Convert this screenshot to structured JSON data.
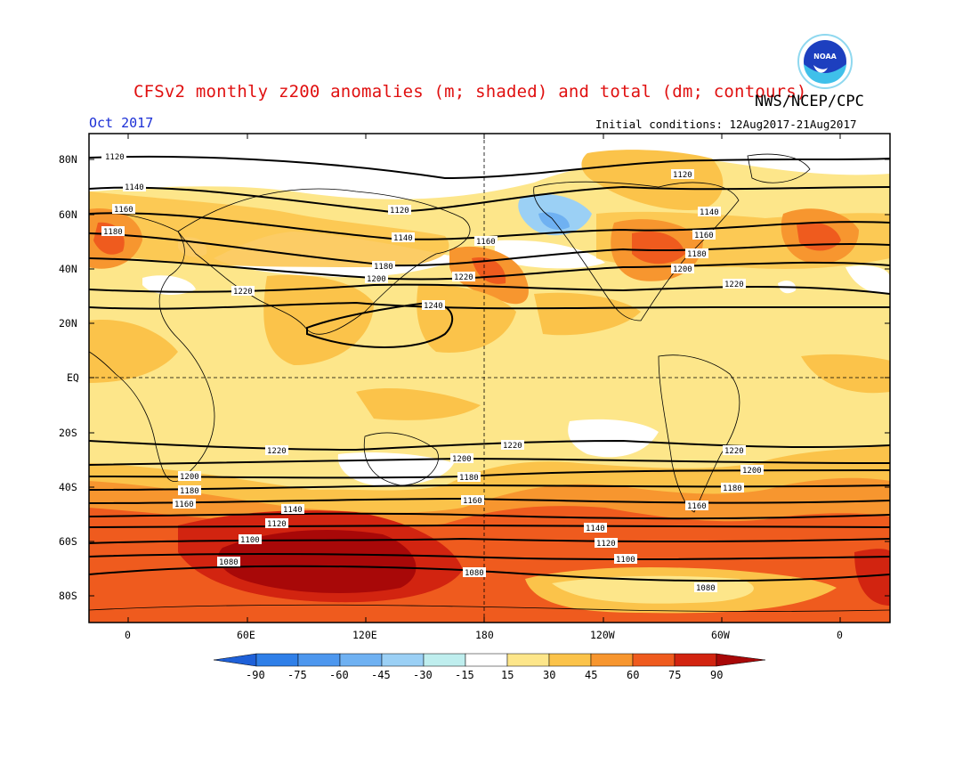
{
  "header": {
    "title": "CFSv2 monthly z200 anomalies (m; shaded) and total (dm; contours)",
    "agency": "NWS/NCEP/CPC",
    "month": "Oct 2017",
    "initial_conditions": "Initial conditions: 12Aug2017-21Aug2017",
    "logo_icon": "noaa-logo-icon"
  },
  "axes": {
    "lat_labels": [
      "80N",
      "60N",
      "40N",
      "20N",
      "EQ",
      "20S",
      "40S",
      "60S",
      "80S"
    ],
    "lon_labels": [
      "0",
      "60E",
      "120E",
      "180",
      "120W",
      "60W",
      "0"
    ]
  },
  "colorbar": {
    "levels": [
      "-90",
      "-75",
      "-60",
      "-45",
      "-30",
      "-15",
      "15",
      "30",
      "45",
      "60",
      "75",
      "90"
    ],
    "colors": {
      "neg90": "#1e60d8",
      "neg75": "#2f7fe8",
      "neg60": "#4d97ee",
      "neg45": "#6fb1f2",
      "neg30": "#9bd0f5",
      "neg15": "#bfeeee",
      "neutral": "#ffffff",
      "pos15": "#fde68a",
      "pos30": "#fbc34a",
      "pos45": "#f7962f",
      "pos60": "#ef5b1e",
      "pos75": "#d22410",
      "pos90": "#a80808"
    }
  },
  "contours": {
    "labels": [
      "1120",
      "1140",
      "1160",
      "1180",
      "1200",
      "1220",
      "1240",
      "1160",
      "1180",
      "1200",
      "1220",
      "1140",
      "1120",
      "1100",
      "1080"
    ]
  }
}
